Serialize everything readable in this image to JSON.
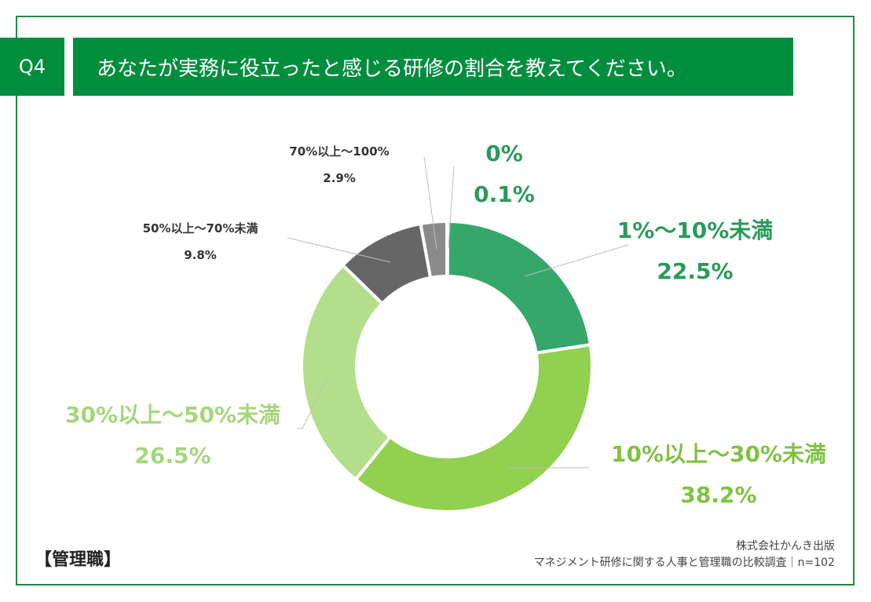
{
  "header": {
    "question_number": "Q4",
    "title": "あなたが実務に役立ったと感じる研修の割合を教えてください。"
  },
  "chart_data": {
    "type": "pie",
    "variant": "donut",
    "title": "あなたが実務に役立ったと感じる研修の割合を教えてください。",
    "categories": [
      "0%",
      "1%〜10%未満",
      "10%以上〜30%未満",
      "30%以上〜50%未満",
      "50%以上〜70%未満",
      "70%以上〜100%"
    ],
    "values": [
      0.1,
      22.5,
      38.2,
      26.5,
      9.8,
      2.9
    ],
    "value_labels": [
      "0.1%",
      "22.5%",
      "38.2%",
      "26.5%",
      "9.8%",
      "2.9%"
    ],
    "colors": [
      "#2e9e5b",
      "#35a76a",
      "#92d050",
      "#b3df8d",
      "#666666",
      "#8a8a8a"
    ],
    "label_colors": [
      "#2a9a5a",
      "#2a9a5a",
      "#7fc241",
      "#a5d67c",
      "#333333",
      "#333333"
    ],
    "unit": "%",
    "start": "top, clockwise"
  },
  "footer": {
    "category": "【管理職】",
    "company": "株式会社かんき出版",
    "survey": "マネジメント研修に関する人事と管理職の比較調査｜n=102"
  }
}
